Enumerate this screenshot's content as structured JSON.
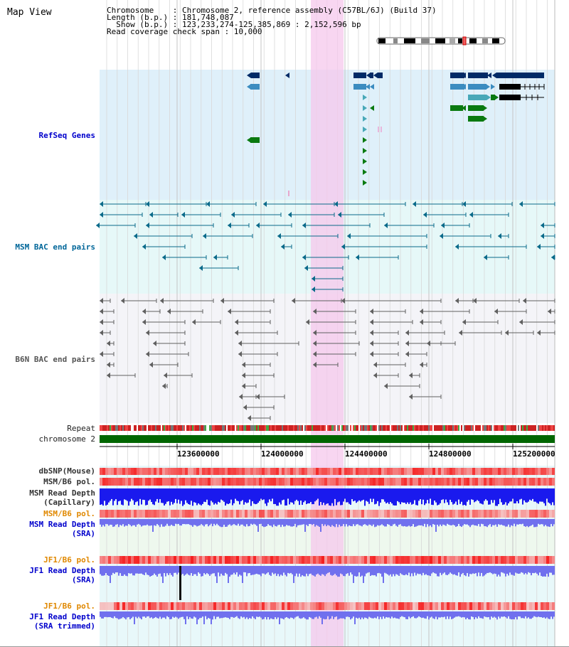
{
  "view_title": "Map View",
  "info": {
    "line1": "Chromosome    : Chromosome 2, reference assembly (C57BL/6J) (Build 37)",
    "line2": "Length (b.p.) : 181,748,087",
    "line3": "  Show (b.p.) : 123,233,274-125,385,869 : 2,152,596 bp",
    "line4": "Read coverage check span : 10,000"
  },
  "tracks": {
    "refseq": "RefSeq Genes",
    "msm_bac": "MSM BAC end pairs",
    "b6n_bac": "B6N BAC end pairs",
    "repeat": "Repeat",
    "chromosome": "chromosome 2",
    "dbsnp": "dbSNP(Mouse)",
    "msm_b6_pol": "MSM/B6 pol.",
    "msm_read_depth_cap_1": "MSM Read Depth",
    "msm_read_depth_cap_2": "(Capillary)",
    "msm_b6_pol_2": "MSM/B6 pol.",
    "msm_read_depth_sra_1": "MSM Read Depth",
    "msm_read_depth_sra_2": "(SRA)",
    "jf1_b6_pol": "JF1/B6 pol.",
    "jf1_read_depth_1": "JF1 Read Depth",
    "jf1_read_depth_2": "(SRA)",
    "jf1_b6_pol_2": "JF1/B6 pol.",
    "jf1_trim_1": "JF1 Read Depth",
    "jf1_trim_2": "(SRA trimmed)"
  },
  "axis": {
    "ticks": [
      "123600000",
      "124000000",
      "124400000",
      "124800000",
      "125200000"
    ]
  },
  "colors": {
    "refseq_bg": "#dff0fa",
    "msm_bg": "#e6f8f8",
    "b6n_bg": "#f4f4f8",
    "highlight": "#f9d6f0",
    "gene_dark": "#002a66",
    "gene_mid": "#3b8cc0",
    "gene_teal": "#48a8b8",
    "gene_green": "#0a7a10",
    "chrom_green": "#006600",
    "msm_line": "#0a6a8a",
    "b6n_line": "#606060",
    "depth_blue": "#2222ee"
  }
}
